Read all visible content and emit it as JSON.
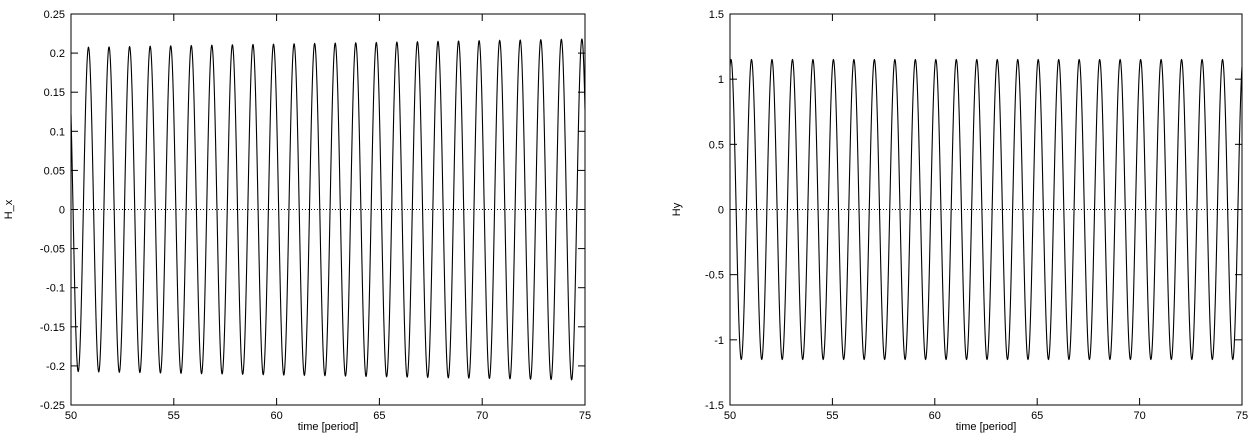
{
  "chart_data": [
    {
      "type": "line",
      "xlabel": "time [period]",
      "ylabel": "H_x",
      "xlim": [
        50,
        75
      ],
      "ylim": [
        -0.25,
        0.25
      ],
      "xticks": [
        50,
        55,
        60,
        65,
        70,
        75
      ],
      "yticks": [
        -0.25,
        -0.2,
        -0.15,
        -0.1,
        -0.05,
        0,
        0.05,
        0.1,
        0.15,
        0.2,
        0.25
      ],
      "xtick_labels": [
        "50",
        "55",
        "60",
        "65",
        "70",
        "75"
      ],
      "ytick_labels": [
        "-0.25",
        "-0.2",
        "-0.15",
        "-0.1",
        "-0.05",
        "0",
        "0.05",
        "0.1",
        "0.15",
        "0.2",
        "0.25"
      ],
      "zero_line": true,
      "grid": false,
      "series": [
        {
          "period": 1,
          "phase_peak_at": 50.85,
          "start_value": 0.2,
          "amplitude_start": 0.207,
          "amplitude_end": 0.218,
          "color": "#000000"
        }
      ]
    },
    {
      "type": "line",
      "xlabel": "time [period]",
      "ylabel": "Hy",
      "xlim": [
        50,
        75
      ],
      "ylim": [
        -1.5,
        1.5
      ],
      "xticks": [
        50,
        55,
        60,
        65,
        70,
        75
      ],
      "yticks": [
        -1.5,
        -1,
        -0.5,
        0,
        0.5,
        1,
        1.5
      ],
      "xtick_labels": [
        "50",
        "55",
        "60",
        "65",
        "70",
        "75"
      ],
      "ytick_labels": [
        "-1.5",
        "-1",
        "-0.5",
        "0",
        "0.5",
        "1",
        "1.5"
      ],
      "zero_line": true,
      "grid": false,
      "series": [
        {
          "period": 1,
          "phase_peak_at": 51.05,
          "start_value": 1.0,
          "amplitude_start": 1.15,
          "amplitude_end": 1.15,
          "color": "#000000"
        }
      ]
    }
  ]
}
